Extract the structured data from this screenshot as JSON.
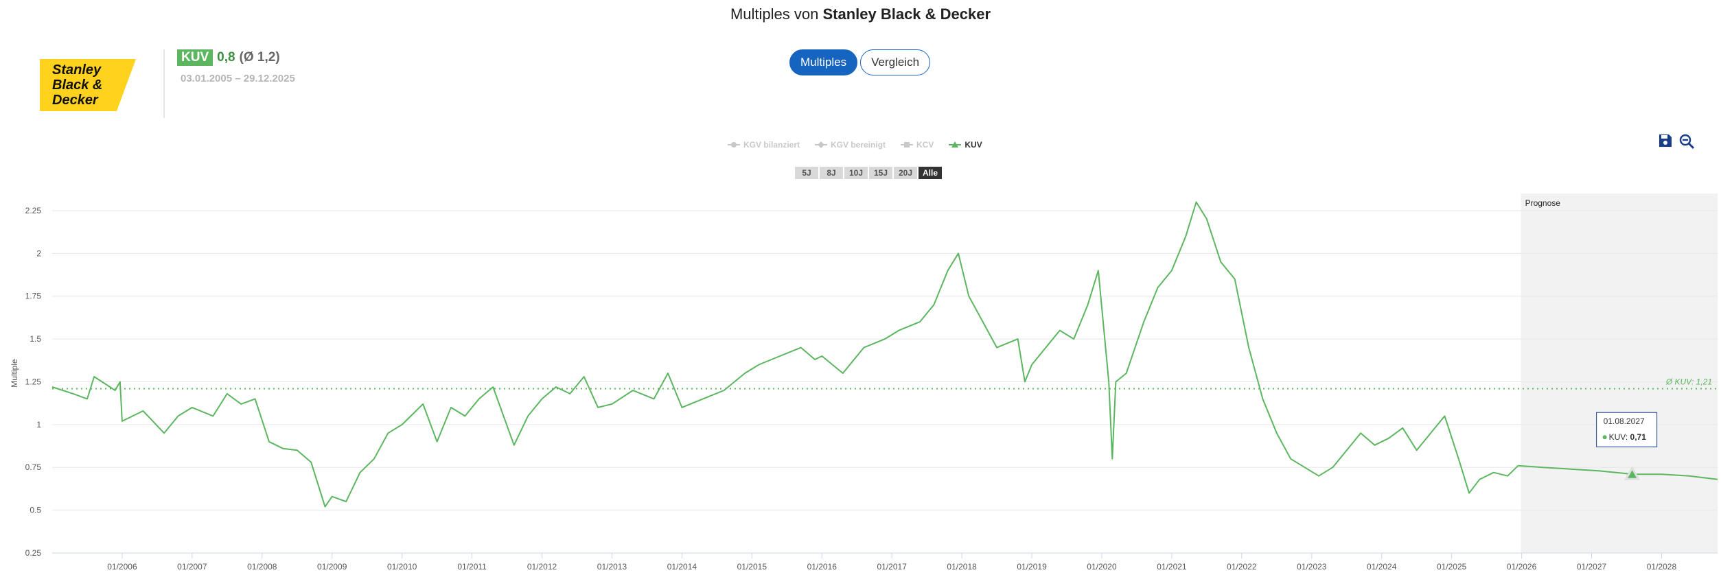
{
  "header": {
    "title_prefix": "Multiples von",
    "company": "Stanley Black & Decker"
  },
  "logo": {
    "line1": "Stanley",
    "line2": "Black &",
    "line3": "Decker",
    "color": "#FFD21E"
  },
  "kpi": {
    "badge": "KUV",
    "value": "0,8",
    "average": "(Ø 1,2)",
    "date_range": "03.01.2005 – 29.12.2025"
  },
  "tabs": [
    {
      "label": "Multiples",
      "active": true
    },
    {
      "label": "Vergleich",
      "active": false
    }
  ],
  "legend": [
    {
      "label": "KGV bilanziert",
      "active": false
    },
    {
      "label": "KGV bereinigt",
      "active": false
    },
    {
      "label": "KCV",
      "active": false
    },
    {
      "label": "KUV",
      "active": true
    }
  ],
  "range_buttons": [
    {
      "label": "5J",
      "active": false
    },
    {
      "label": "8J",
      "active": false
    },
    {
      "label": "10J",
      "active": false
    },
    {
      "label": "15J",
      "active": false
    },
    {
      "label": "20J",
      "active": false
    },
    {
      "label": "Alle",
      "active": true
    }
  ],
  "tools": {
    "save_icon": "save-icon",
    "zoom_icon": "zoom-out-icon"
  },
  "colors": {
    "series": "#5cb660",
    "accent": "#1565c0",
    "forecast_bg": "#f2f2f2"
  },
  "tooltip": {
    "date": "01.08.2027",
    "label": "KUV:",
    "value": "0,71"
  },
  "chart_data": {
    "type": "line",
    "ylabel": "Multiple",
    "ylim": [
      0.25,
      2.35
    ],
    "yticks": [
      "0.25",
      "0.5",
      "0.75",
      "1",
      "1.25",
      "1.5",
      "1.75",
      "2",
      "2.25"
    ],
    "ytick_values": [
      0.25,
      0.5,
      0.75,
      1,
      1.25,
      1.5,
      1.75,
      2,
      2.25
    ],
    "xlim": [
      2005.0,
      2028.8
    ],
    "xticks": [
      "01/2006",
      "01/2007",
      "01/2008",
      "01/2009",
      "01/2010",
      "01/2011",
      "01/2012",
      "01/2013",
      "01/2014",
      "01/2015",
      "01/2016",
      "01/2017",
      "01/2018",
      "01/2019",
      "01/2020",
      "01/2021",
      "01/2022",
      "01/2023",
      "01/2024",
      "01/2025",
      "01/2026",
      "01/2027",
      "01/2028"
    ],
    "xtick_values": [
      2006,
      2007,
      2008,
      2009,
      2010,
      2011,
      2012,
      2013,
      2014,
      2015,
      2016,
      2017,
      2018,
      2019,
      2020,
      2021,
      2022,
      2023,
      2024,
      2025,
      2026,
      2027,
      2028
    ],
    "forecast_label": "Prognose",
    "forecast_start": 2025.99,
    "average": {
      "label": "Ø KUV: 1,21",
      "value": 1.21
    },
    "series": [
      {
        "name": "KUV",
        "x": [
          2005.0,
          2005.3,
          2005.5,
          2005.6,
          2005.9,
          2005.97,
          2006.0,
          2006.3,
          2006.6,
          2006.8,
          2007.0,
          2007.3,
          2007.5,
          2007.7,
          2007.9,
          2008.1,
          2008.3,
          2008.5,
          2008.7,
          2008.9,
          2009.0,
          2009.2,
          2009.4,
          2009.6,
          2009.8,
          2010.0,
          2010.3,
          2010.5,
          2010.7,
          2010.9,
          2011.1,
          2011.3,
          2011.6,
          2011.8,
          2012.0,
          2012.2,
          2012.4,
          2012.6,
          2012.8,
          2013.0,
          2013.3,
          2013.6,
          2013.8,
          2014.0,
          2014.3,
          2014.6,
          2014.9,
          2015.1,
          2015.4,
          2015.7,
          2015.9,
          2016.0,
          2016.3,
          2016.6,
          2016.9,
          2017.1,
          2017.4,
          2017.6,
          2017.8,
          2017.95,
          2018.1,
          2018.3,
          2018.5,
          2018.8,
          2018.9,
          2019.0,
          2019.2,
          2019.4,
          2019.6,
          2019.8,
          2019.95,
          2020.1,
          2020.15,
          2020.2,
          2020.35,
          2020.6,
          2020.8,
          2021.0,
          2021.2,
          2021.35,
          2021.5,
          2021.7,
          2021.9,
          2022.1,
          2022.3,
          2022.5,
          2022.7,
          2022.9,
          2023.1,
          2023.3,
          2023.5,
          2023.7,
          2023.9,
          2024.1,
          2024.3,
          2024.5,
          2024.7,
          2024.9,
          2025.1,
          2025.25,
          2025.4,
          2025.6,
          2025.8,
          2025.95,
          2026.3,
          2026.7,
          2027.1,
          2027.6,
          2028.0,
          2028.4,
          2028.8
        ],
        "y": [
          1.22,
          1.18,
          1.15,
          1.28,
          1.2,
          1.25,
          1.02,
          1.08,
          0.95,
          1.05,
          1.1,
          1.05,
          1.18,
          1.12,
          1.15,
          0.9,
          0.86,
          0.85,
          0.78,
          0.52,
          0.58,
          0.55,
          0.72,
          0.8,
          0.95,
          1.0,
          1.12,
          0.9,
          1.1,
          1.05,
          1.15,
          1.22,
          0.88,
          1.05,
          1.15,
          1.22,
          1.18,
          1.28,
          1.1,
          1.12,
          1.2,
          1.15,
          1.3,
          1.1,
          1.15,
          1.2,
          1.3,
          1.35,
          1.4,
          1.45,
          1.38,
          1.4,
          1.3,
          1.45,
          1.5,
          1.55,
          1.6,
          1.7,
          1.9,
          2.0,
          1.75,
          1.6,
          1.45,
          1.5,
          1.25,
          1.35,
          1.45,
          1.55,
          1.5,
          1.7,
          1.9,
          1.25,
          0.8,
          1.25,
          1.3,
          1.6,
          1.8,
          1.9,
          2.1,
          2.3,
          2.2,
          1.95,
          1.85,
          1.45,
          1.15,
          0.95,
          0.8,
          0.75,
          0.7,
          0.75,
          0.85,
          0.95,
          0.88,
          0.92,
          0.98,
          0.85,
          0.95,
          1.05,
          0.8,
          0.6,
          0.68,
          0.72,
          0.7,
          0.76,
          0.75,
          0.74,
          0.73,
          0.71,
          0.71,
          0.7,
          0.68
        ]
      }
    ]
  }
}
